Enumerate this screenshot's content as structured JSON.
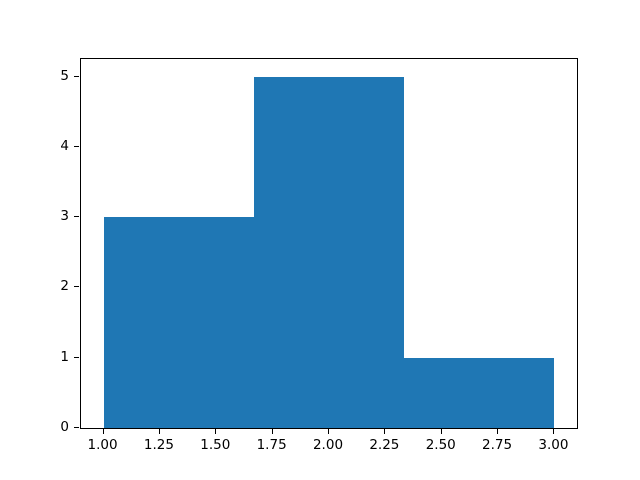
{
  "chart_data": {
    "type": "bar",
    "subtype": "histogram",
    "title": "",
    "xlabel": "",
    "ylabel": "",
    "bin_edges": [
      1.0,
      1.6667,
      2.3333,
      3.0
    ],
    "counts": [
      3,
      5,
      1
    ],
    "bar_color": "#1f77b4",
    "xlim": [
      0.9,
      3.1
    ],
    "ylim": [
      0,
      5.25
    ],
    "xticks": {
      "values": [
        1.0,
        1.25,
        1.5,
        1.75,
        2.0,
        2.25,
        2.5,
        2.75,
        3.0
      ],
      "labels": [
        "1.00",
        "1.25",
        "1.50",
        "1.75",
        "2.00",
        "2.25",
        "2.50",
        "2.75",
        "3.00"
      ]
    },
    "yticks": {
      "values": [
        0,
        1,
        2,
        3,
        4,
        5
      ],
      "labels": [
        "0",
        "1",
        "2",
        "3",
        "4",
        "5"
      ]
    },
    "grid": false,
    "legend_position": "none"
  },
  "colors": {
    "background": "#ffffff",
    "spine": "#000000",
    "tick_label": "#000000"
  }
}
